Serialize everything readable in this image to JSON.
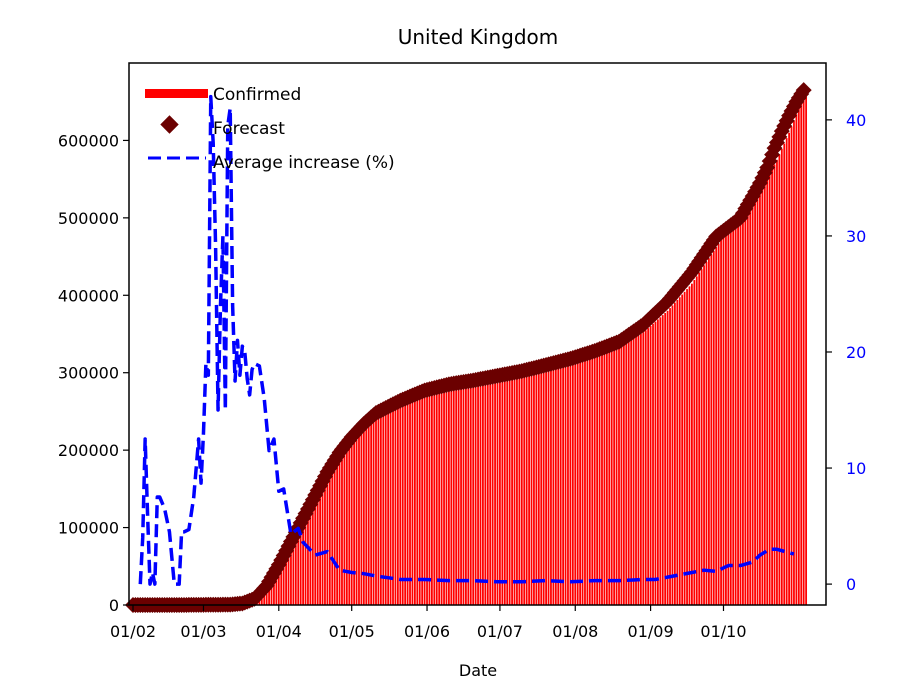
{
  "chart_data": {
    "type": "bar+scatter+line",
    "title": "United Kingdom",
    "xlabel": "Date",
    "ylabel": "",
    "ylim": [
      0,
      700000
    ],
    "y2lim": [
      -1.8,
      44.9
    ],
    "x_ticks": [
      "01/02",
      "01/03",
      "01/04",
      "01/05",
      "01/06",
      "01/07",
      "01/08",
      "01/09",
      "01/10"
    ],
    "y_ticks": [
      "0",
      "100000",
      "200000",
      "300000",
      "400000",
      "500000",
      "600000"
    ],
    "y2_ticks": [
      "0",
      "10",
      "20",
      "30",
      "40"
    ],
    "legend": [
      "Confirmed",
      "Forecast",
      "Average increase (%)"
    ],
    "legend_position": "top-left",
    "colors": {
      "confirmed": "#ff0000",
      "forecast": "#6b0000",
      "avg": "#0000ff",
      "right_axis": "#0000ff"
    },
    "confirmed": {
      "day": [
        0,
        20,
        40,
        50,
        55,
        60,
        65,
        70,
        75,
        80,
        85,
        90,
        95,
        100,
        110,
        120,
        130,
        140,
        150,
        160,
        170,
        180,
        190,
        200,
        210,
        220,
        230,
        240,
        250,
        255,
        260,
        265,
        270,
        275,
        277
      ],
      "value": [
        2,
        20,
        500,
        6000,
        20000,
        48000,
        80000,
        110000,
        140000,
        170000,
        195000,
        215000,
        232000,
        245000,
        262000,
        275000,
        283000,
        289000,
        294000,
        300000,
        307000,
        313000,
        322000,
        333000,
        352000,
        380000,
        415000,
        462000,
        510000,
        522000,
        545000,
        575000,
        610000,
        650000,
        665000
      ]
    },
    "forecast": {
      "day": [
        0,
        20,
        40,
        45,
        50,
        55,
        60,
        65,
        70,
        75,
        80,
        85,
        90,
        95,
        100,
        110,
        120,
        130,
        140,
        150,
        160,
        170,
        180,
        190,
        200,
        210,
        220,
        230,
        240,
        250,
        252,
        255,
        258,
        261,
        264,
        267,
        270,
        273,
        276
      ],
      "value": [
        2,
        20,
        500,
        2000,
        8000,
        25000,
        52000,
        82000,
        112000,
        142000,
        172000,
        197000,
        217000,
        234000,
        248000,
        264000,
        277000,
        285000,
        290000,
        296000,
        302000,
        310000,
        318000,
        328000,
        340000,
        362000,
        392000,
        430000,
        476000,
        500000,
        512000,
        528000,
        545000,
        565000,
        590000,
        612000,
        632000,
        650000,
        665000
      ]
    },
    "average_increase": {
      "day": [
        3,
        4,
        5,
        6,
        7,
        8,
        9,
        10,
        11,
        13,
        15,
        17,
        18,
        19,
        20,
        21,
        23,
        25,
        27,
        28,
        29,
        30,
        31,
        32,
        33,
        34,
        35,
        36,
        37,
        38,
        39,
        40,
        41,
        42,
        43,
        44,
        45,
        46,
        47,
        48,
        49,
        50,
        52,
        54,
        56,
        58,
        60,
        62,
        65,
        68,
        70,
        75,
        80,
        85,
        90,
        95,
        100,
        110,
        120,
        130,
        140,
        150,
        160,
        170,
        180,
        190,
        200,
        210,
        215,
        220,
        225,
        230,
        235,
        240,
        245,
        250,
        255,
        258,
        262,
        265,
        270,
        272
      ],
      "value": [
        0,
        4,
        12.5,
        6,
        0,
        1,
        0,
        7.5,
        7.5,
        6.5,
        4.5,
        0,
        0,
        0,
        4.5,
        4.5,
        4.7,
        7.5,
        12.5,
        8.7,
        13,
        19,
        18,
        42,
        38,
        29,
        15,
        24,
        30,
        15,
        39.5,
        41,
        24,
        17.5,
        21,
        18,
        20.5,
        20,
        17.7,
        16.3,
        18.5,
        19,
        18.8,
        16,
        11.5,
        12.5,
        8,
        8.2,
        4.3,
        4.8,
        3.6,
        2.5,
        2.8,
        1.2,
        1,
        0.9,
        0.7,
        0.4,
        0.4,
        0.3,
        0.3,
        0.2,
        0.2,
        0.3,
        0.2,
        0.3,
        0.3,
        0.4,
        0.4,
        0.6,
        0.8,
        1.0,
        1.2,
        1.1,
        1.6,
        1.6,
        1.9,
        2.5,
        3.0,
        3.0,
        2.7,
        2.6
      ]
    }
  }
}
